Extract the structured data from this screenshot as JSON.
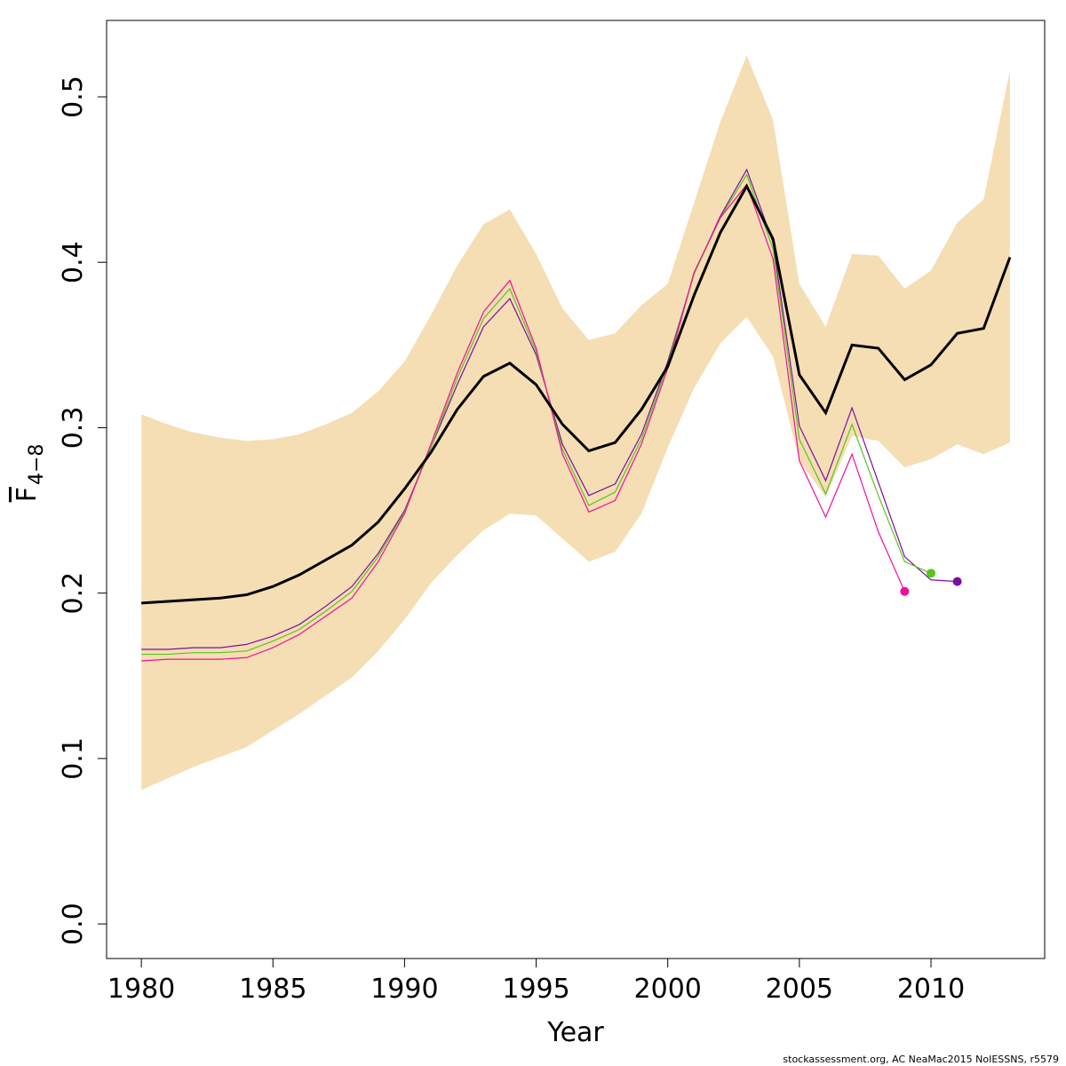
{
  "chart_data": {
    "type": "line",
    "xlabel": "Year",
    "ylabel": "F",
    "ylabel_subscript": "4−8",
    "footnote": "stockassessment.org, AC  NeaMac2015  NoIESSNS, r5579",
    "x": [
      1980,
      1981,
      1982,
      1983,
      1984,
      1985,
      1986,
      1987,
      1988,
      1989,
      1990,
      1991,
      1992,
      1993,
      1994,
      1995,
      1996,
      1997,
      1998,
      1999,
      2000,
      2001,
      2002,
      2003,
      2004,
      2005,
      2006,
      2007,
      2008,
      2009,
      2010,
      2011,
      2012,
      2013
    ],
    "xlim": [
      1978.68,
      2014.32
    ],
    "xticks": [
      1980,
      1985,
      1990,
      1995,
      2000,
      2005,
      2010
    ],
    "ylim": [
      -0.0209,
      0.5462
    ],
    "yticks": [
      {
        "value": 0,
        "label": "0.0"
      },
      0.1,
      0.2,
      0.3,
      0.4,
      0.5
    ],
    "band": {
      "color": "#f5deb3",
      "upper": [
        0.308,
        0.302,
        0.297,
        0.294,
        0.292,
        0.293,
        0.296,
        0.302,
        0.309,
        0.322,
        0.34,
        0.368,
        0.398,
        0.423,
        0.432,
        0.405,
        0.372,
        0.353,
        0.357,
        0.374,
        0.387,
        0.436,
        0.485,
        0.525,
        0.486,
        0.387,
        0.361,
        0.405,
        0.404,
        0.384,
        0.395,
        0.424,
        0.438,
        0.516
      ],
      "lower": [
        0.081,
        0.088,
        0.095,
        0.101,
        0.107,
        0.117,
        0.127,
        0.138,
        0.149,
        0.165,
        0.184,
        0.206,
        0.223,
        0.238,
        0.248,
        0.247,
        0.233,
        0.219,
        0.225,
        0.248,
        0.288,
        0.324,
        0.351,
        0.367,
        0.343,
        0.28,
        0.258,
        0.295,
        0.292,
        0.276,
        0.281,
        0.29,
        0.284,
        0.291
      ]
    },
    "series": [
      {
        "color": "#000000",
        "values": [
          0.194,
          0.195,
          0.196,
          0.197,
          0.199,
          0.204,
          0.211,
          0.22,
          0.229,
          0.243,
          0.263,
          0.285,
          0.311,
          0.331,
          0.339,
          0.326,
          0.302,
          0.286,
          0.291,
          0.311,
          0.337,
          0.38,
          0.418,
          0.446,
          0.414,
          0.332,
          0.309,
          0.35,
          0.348,
          0.329,
          0.338,
          0.357,
          0.36,
          0.403
        ]
      },
      {
        "color": "#7b0fa0",
        "end_marker": true,
        "values": [
          0.166,
          0.166,
          0.167,
          0.167,
          0.169,
          0.174,
          0.181,
          0.192,
          0.204,
          0.224,
          0.25,
          0.288,
          0.326,
          0.361,
          0.378,
          0.344,
          0.29,
          0.259,
          0.266,
          0.296,
          0.34,
          0.393,
          0.428,
          0.456,
          0.412,
          0.301,
          0.268,
          0.312,
          0.267,
          0.222,
          0.208,
          0.207,
          null,
          null
        ]
      },
      {
        "color": "#5bc21e",
        "end_marker": true,
        "values": [
          0.163,
          0.163,
          0.164,
          0.164,
          0.165,
          0.171,
          0.178,
          0.189,
          0.201,
          0.222,
          0.249,
          0.288,
          0.33,
          0.366,
          0.384,
          0.346,
          0.287,
          0.253,
          0.261,
          0.293,
          0.338,
          0.393,
          0.427,
          0.453,
          0.408,
          0.293,
          0.26,
          0.302,
          0.259,
          0.219,
          0.212,
          null,
          null,
          null
        ]
      },
      {
        "color": "#f0109a",
        "end_marker": true,
        "values": [
          0.159,
          0.16,
          0.16,
          0.16,
          0.161,
          0.167,
          0.175,
          0.186,
          0.197,
          0.219,
          0.248,
          0.29,
          0.333,
          0.37,
          0.389,
          0.348,
          0.284,
          0.249,
          0.256,
          0.29,
          0.336,
          0.394,
          0.427,
          0.447,
          0.402,
          0.28,
          0.246,
          0.284,
          0.237,
          0.201,
          null,
          null,
          null,
          null
        ]
      }
    ]
  }
}
